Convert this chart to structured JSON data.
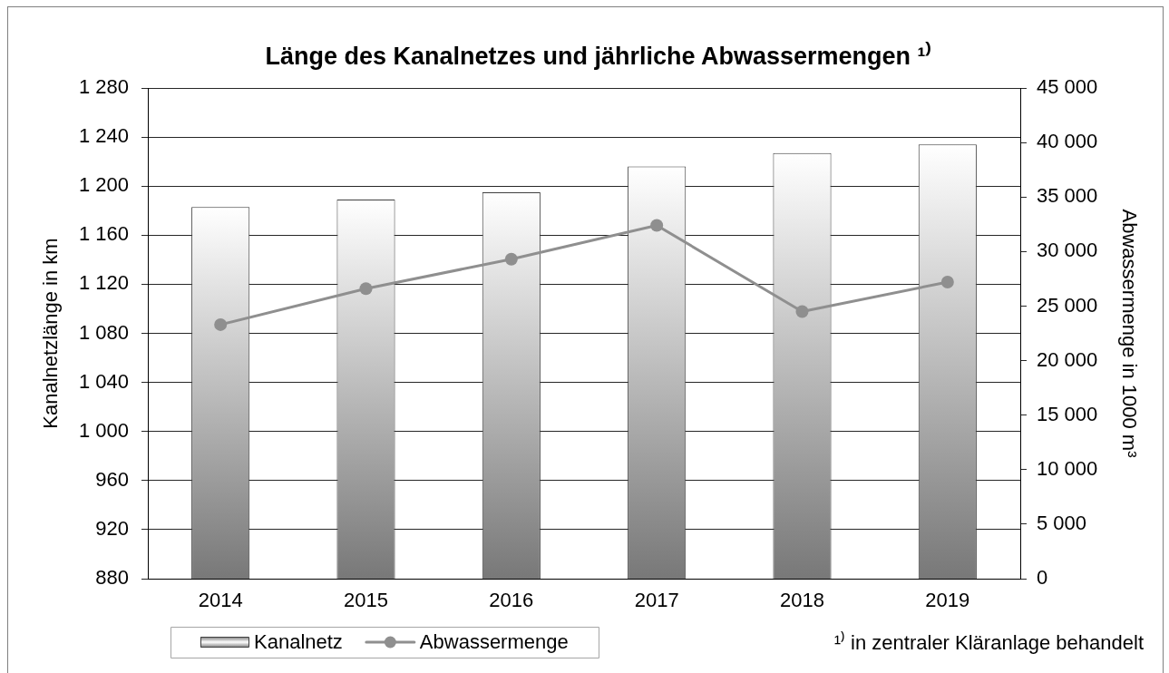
{
  "chart_data": {
    "type": "bar",
    "title": "Länge des Kanalnetzes und jährliche Abwassermengen ¹⁾",
    "ylabel": "Kanalnetzlänge in km",
    "y2label": "Abwassermenge in 1000 m³",
    "annotations": [
      "¹⁾ in zentraler Kläranlage behandelt"
    ],
    "categories": [
      "2014",
      "2015",
      "2016",
      "2017",
      "2018",
      "2019"
    ],
    "series": [
      {
        "name": "Kanalnetz",
        "color": "#787878",
        "values": [
          1183,
          1189,
          1195,
          1216,
          1227,
          1234
        ]
      },
      {
        "name": "Abwassermenge",
        "type": "line",
        "axis": "y2",
        "color": "#8f8f8f",
        "values": [
          23300,
          26600,
          29300,
          32400,
          24500,
          27200
        ]
      }
    ],
    "ylim": [
      880,
      1280
    ],
    "yticks": [
      880,
      920,
      960,
      {
        "value": 1000,
        "label": "1 000"
      },
      {
        "value": 1040,
        "label": "1 040"
      },
      {
        "value": 1080,
        "label": "1 080"
      },
      {
        "value": 1120,
        "label": "1 120"
      },
      {
        "value": 1160,
        "label": "1 160"
      },
      {
        "value": 1200,
        "label": "1 200"
      },
      {
        "value": 1240,
        "label": "1 240"
      },
      {
        "value": 1280,
        "label": "1 280"
      }
    ],
    "y2lim": [
      0,
      45000
    ],
    "y2ticks": [
      0,
      {
        "value": 5000,
        "label": "5 000"
      },
      {
        "value": 10000,
        "label": "10 000"
      },
      {
        "value": 15000,
        "label": "15 000"
      },
      {
        "value": 20000,
        "label": "20 000"
      },
      {
        "value": 25000,
        "label": "25 000"
      },
      {
        "value": 30000,
        "label": "30 000"
      },
      {
        "value": 35000,
        "label": "35 000"
      },
      {
        "value": 40000,
        "label": "40 000"
      },
      {
        "value": 45000,
        "label": "45 000"
      }
    ],
    "grid": "y",
    "legend": "bottom left",
    "marker": "circle"
  }
}
